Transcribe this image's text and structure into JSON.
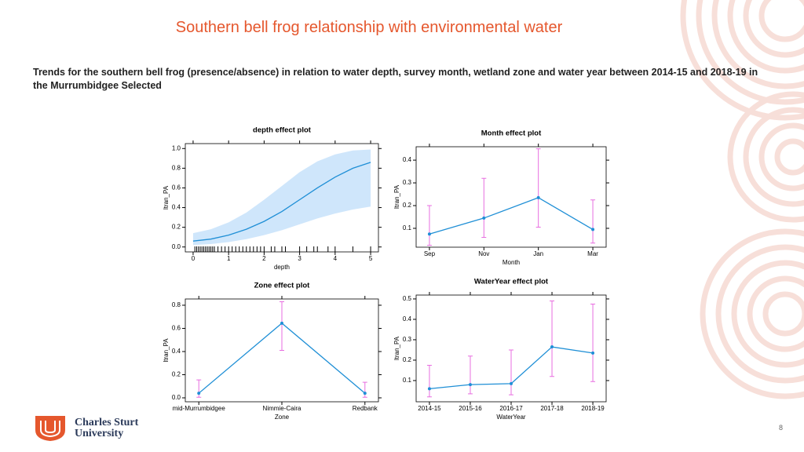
{
  "slide": {
    "title": "Southern bell frog relationship with environmental water",
    "subtitle": "Trends for the southern bell frog (presence/absence) in relation to water depth, survey month, wetland zone and water year between 2014-15 and 2018-19 in the Murrumbidgee Selected",
    "logo_line1": "Charles Sturt",
    "logo_line2": "University",
    "page_number": "8"
  },
  "chart_data": [
    {
      "type": "line",
      "title": "depth effect plot",
      "xlabel": "depth",
      "ylabel": "ltran_PA",
      "interval": "band",
      "color": "#1f8fd6",
      "interval_color": "#cfe6fb",
      "x": [
        0,
        0.5,
        1,
        1.5,
        2,
        2.5,
        3,
        3.5,
        4,
        4.5,
        5
      ],
      "values": [
        0.06,
        0.08,
        0.12,
        0.18,
        0.26,
        0.36,
        0.48,
        0.6,
        0.71,
        0.8,
        0.86
      ],
      "lower": [
        0.02,
        0.03,
        0.05,
        0.08,
        0.12,
        0.17,
        0.23,
        0.29,
        0.34,
        0.38,
        0.41
      ],
      "upper": [
        0.14,
        0.18,
        0.25,
        0.35,
        0.48,
        0.62,
        0.76,
        0.87,
        0.94,
        0.98,
        0.99
      ],
      "rug": [
        0.05,
        0.1,
        0.15,
        0.2,
        0.25,
        0.3,
        0.35,
        0.4,
        0.45,
        0.5,
        0.55,
        0.6,
        0.7,
        0.8,
        0.9,
        1.0,
        1.1,
        1.2,
        1.3,
        1.4,
        1.5,
        1.6,
        1.7,
        1.8,
        1.9,
        2.0,
        2.2,
        2.3,
        2.5,
        2.6,
        3.0,
        3.2,
        3.4,
        3.5,
        3.8,
        4.0,
        4.5,
        5.0
      ],
      "xlim": [
        -0.22,
        5.22
      ],
      "xticks": [
        0,
        1,
        2,
        3,
        4,
        5
      ],
      "ylim": [
        -0.05,
        1.05
      ],
      "yticks": [
        {
          "value": 0,
          "label": "0.0"
        },
        0.2,
        0.4,
        0.6,
        0.8,
        {
          "value": 1,
          "label": "1.0"
        }
      ]
    },
    {
      "type": "line",
      "title": "Month effect plot",
      "xlabel": "Month",
      "ylabel": "ltran_PA",
      "interval": "errorbar",
      "color": "#1f8fd6",
      "interval_color": "#e86ee0",
      "categories": [
        "Sep",
        "Nov",
        "Jan",
        "Mar"
      ],
      "values": [
        0.075,
        0.145,
        0.235,
        0.095
      ],
      "lower": [
        0.025,
        0.06,
        0.105,
        0.035
      ],
      "upper": [
        0.2,
        0.32,
        0.45,
        0.225
      ],
      "ylim": [
        0.017,
        0.459
      ],
      "yticks": [
        0.1,
        0.2,
        0.3,
        0.4
      ]
    },
    {
      "type": "line",
      "title": "Zone effect plot",
      "xlabel": "Zone",
      "ylabel": "ltran_PA",
      "interval": "errorbar",
      "color": "#1f8fd6",
      "interval_color": "#e86ee0",
      "categories": [
        "mid-Murrumbidgee",
        "Nimmie-Caira",
        "Redbank"
      ],
      "values": [
        0.04,
        0.645,
        0.04
      ],
      "lower": [
        0.005,
        0.41,
        0.005
      ],
      "upper": [
        0.155,
        0.83,
        0.135
      ],
      "ylim": [
        -0.034,
        0.854
      ],
      "yticks": [
        {
          "value": 0,
          "label": "0.0"
        },
        0.2,
        0.4,
        0.6,
        0.8
      ]
    },
    {
      "type": "line",
      "title": "WaterYear effect plot",
      "xlabel": "WaterYear",
      "ylabel": "ltran_PA",
      "interval": "errorbar",
      "color": "#1f8fd6",
      "interval_color": "#e86ee0",
      "categories": [
        "2014-15",
        "2015-16",
        "2016-17",
        "2017-18",
        "2018-19"
      ],
      "values": [
        0.06,
        0.08,
        0.085,
        0.265,
        0.235
      ],
      "lower": [
        0.02,
        0.035,
        0.03,
        0.12,
        0.095
      ],
      "upper": [
        0.175,
        0.22,
        0.25,
        0.49,
        0.475
      ],
      "ylim": [
        -0.004,
        0.519
      ],
      "yticks": [
        0.1,
        0.2,
        0.3,
        0.4,
        0.5
      ]
    }
  ]
}
